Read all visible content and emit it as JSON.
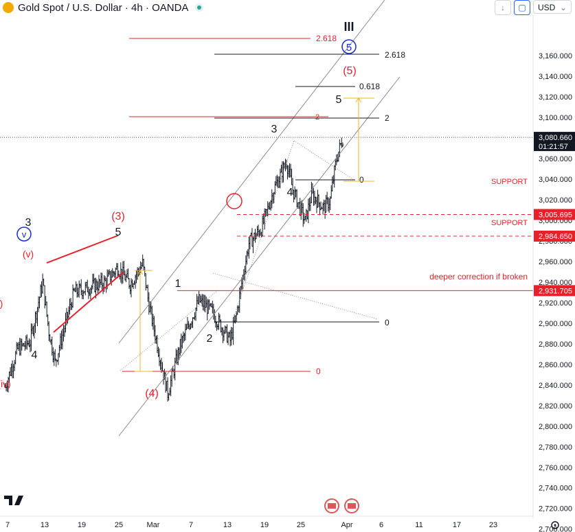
{
  "header": {
    "symbol": "Gold Spot / U.S. Dollar · 4h · OANDA",
    "currency": "USD",
    "down_icon": "arrow-down-icon",
    "fullscreen_icon": "fullscreen-icon"
  },
  "colors": {
    "bull": "#131722",
    "red": "#e8202a",
    "orange": "#f0b323",
    "blue": "#1b2bd0",
    "gray": "#8c8c8c",
    "axis_text": "#131722"
  },
  "chart_data": {
    "type": "ohlc",
    "y_range": [
      2690,
      3180
    ],
    "y_ticks": [
      2700,
      2720,
      2740,
      2760,
      2780,
      2800,
      2820,
      2840,
      2860,
      2880,
      2900,
      2920,
      2940,
      2960,
      2980,
      3000,
      3020,
      3040,
      3060,
      3080,
      3100,
      3120,
      3140,
      3160
    ],
    "x_ticks": [
      "7",
      "13",
      "19",
      "25",
      "Mar",
      "7",
      "13",
      "19",
      "25",
      "Apr",
      "6",
      "11",
      "17",
      "23"
    ],
    "price_path": [
      [
        "2025-02-03",
        2838
      ],
      [
        "2025-02-05",
        2875
      ],
      [
        "2025-02-07",
        2882
      ],
      [
        "2025-02-09",
        2940
      ],
      [
        "2025-02-10",
        2892
      ],
      [
        "2025-02-11",
        2862
      ],
      [
        "2025-02-14",
        2930
      ],
      [
        "2025-02-19",
        2940
      ],
      [
        "2025-02-21",
        2954
      ],
      [
        "2025-02-23",
        2938
      ],
      [
        "2025-02-25",
        2958
      ],
      [
        "2025-02-26",
        2918
      ],
      [
        "2025-02-28",
        2860
      ],
      [
        "2025-03-01",
        2832
      ],
      [
        "2025-03-03",
        2878
      ],
      [
        "2025-03-06",
        2922
      ],
      [
        "2025-03-08",
        2912
      ],
      [
        "2025-03-11",
        2883
      ],
      [
        "2025-03-12",
        2908
      ],
      [
        "2025-03-13",
        2945
      ],
      [
        "2025-03-14",
        2978
      ],
      [
        "2025-03-16",
        2992
      ],
      [
        "2025-03-18",
        3030
      ],
      [
        "2025-03-20",
        3057
      ],
      [
        "2025-03-21",
        3030
      ],
      [
        "2025-03-23",
        2999
      ],
      [
        "2025-03-24",
        3025
      ],
      [
        "2025-03-26",
        3012
      ],
      [
        "2025-03-27",
        3020
      ],
      [
        "2025-03-28",
        3060
      ],
      [
        "2025-03-29",
        3080
      ]
    ],
    "price_labels": [
      {
        "text": "3,080.660",
        "sub": "01:21:57",
        "value": 3080.66,
        "style": "dark"
      },
      {
        "text": "3,005.695",
        "value": 3005.695,
        "style": "red"
      },
      {
        "text": "2,984.650",
        "value": 2984.65,
        "style": "red"
      },
      {
        "text": "2,931.705",
        "value": 2931.705,
        "style": "red"
      }
    ],
    "level_labels": {
      "support_1": "SUPPORT",
      "support_2": "SUPPORT",
      "deeper": "deeper correction if broken"
    },
    "fib_labels": {
      "red_2618": "2.618",
      "black_2618": "2.618",
      "black_0618": "0.618",
      "red_2": "2",
      "black_2": "2",
      "black_0_upper": "0",
      "black_0_lower": "0",
      "red_0": "0"
    },
    "wave_labels": {
      "roman_iii": "III",
      "circle_5": "5",
      "paren_5": "(5)",
      "w5": "5",
      "w3_upper": "3",
      "w4_upper": "4",
      "w1": "1",
      "w2": "2",
      "paren_3": "(3)",
      "w5_left": "5",
      "paren_4": "(4)",
      "w3_left": "3",
      "circle_v": "v",
      "paren_v": "(v)",
      "paren_partial": ")",
      "w4_left": "4",
      "paren_iv": "(iv)"
    }
  }
}
